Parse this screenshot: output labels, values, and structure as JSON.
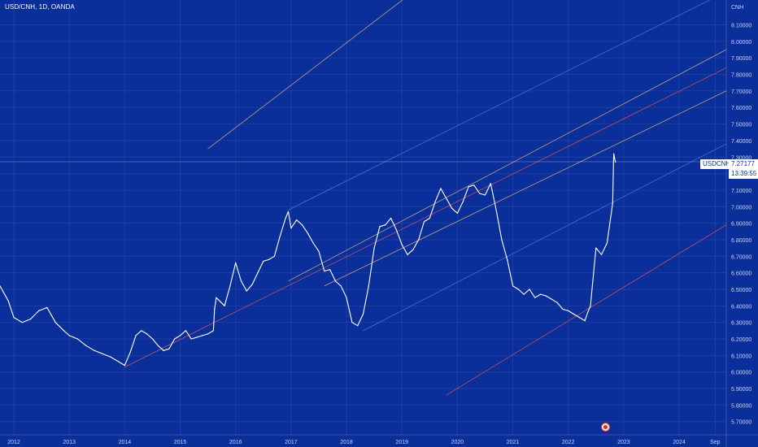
{
  "header": {
    "title": "USD/CNH, 1D, OANDA"
  },
  "price_scale": {
    "currency": "CNH",
    "ticks": [
      "8.10000",
      "8.00000",
      "7.90000",
      "7.80000",
      "7.70000",
      "7.60000",
      "7.50000",
      "7.40000",
      "7.30000",
      "7.20000",
      "7.10000",
      "7.00000",
      "6.90000",
      "6.80000",
      "6.70000",
      "6.60000",
      "6.50000",
      "6.40000",
      "6.30000",
      "6.20000",
      "6.10000",
      "6.00000",
      "5.90000",
      "5.80000",
      "5.70000"
    ]
  },
  "current_price": {
    "symbol": "USDCNH",
    "value": "7.27177",
    "countdown": "13:39:55"
  },
  "time_axis": {
    "labels": [
      "2012",
      "2013",
      "2014",
      "2015",
      "2016",
      "2017",
      "2018",
      "2019",
      "2020",
      "2021",
      "2022",
      "2023",
      "2024",
      "Sep"
    ]
  },
  "colors": {
    "background": "#0b2f9a",
    "price_line": "#ffffff",
    "channel_orange": "#e0b27a",
    "channel_red": "#e0525a",
    "channel_blue": "#4a7ce0",
    "axis_text": "#c8d3f0"
  },
  "chart_data": {
    "type": "line",
    "title": "USD/CNH, 1D, OANDA",
    "xlabel": "",
    "ylabel": "CNH",
    "ylim": [
      5.62,
      8.25
    ],
    "xlim": [
      2011.75,
      2024.85
    ],
    "grid": true,
    "series": [
      {
        "name": "USDCNH",
        "x": [
          2011.75,
          2011.9,
          2012.0,
          2012.15,
          2012.3,
          2012.45,
          2012.6,
          2012.75,
          2012.9,
          2013.0,
          2013.15,
          2013.3,
          2013.45,
          2013.6,
          2013.75,
          2013.9,
          2014.0,
          2014.1,
          2014.2,
          2014.3,
          2014.4,
          2014.5,
          2014.6,
          2014.7,
          2014.8,
          2014.9,
          2015.0,
          2015.1,
          2015.2,
          2015.3,
          2015.4,
          2015.5,
          2015.6,
          2015.62,
          2015.65,
          2015.8,
          2015.9,
          2016.0,
          2016.1,
          2016.2,
          2016.3,
          2016.4,
          2016.5,
          2016.6,
          2016.7,
          2016.8,
          2016.9,
          2016.95,
          2017.0,
          2017.1,
          2017.2,
          2017.3,
          2017.4,
          2017.5,
          2017.6,
          2017.7,
          2017.8,
          2017.9,
          2018.0,
          2018.1,
          2018.2,
          2018.3,
          2018.4,
          2018.5,
          2018.6,
          2018.7,
          2018.8,
          2018.9,
          2019.0,
          2019.1,
          2019.2,
          2019.3,
          2019.4,
          2019.5,
          2019.6,
          2019.7,
          2019.8,
          2019.9,
          2020.0,
          2020.1,
          2020.2,
          2020.3,
          2020.4,
          2020.5,
          2020.6,
          2020.7,
          2020.8,
          2020.9,
          2021.0,
          2021.1,
          2021.2,
          2021.3,
          2021.4,
          2021.5,
          2021.6,
          2021.7,
          2021.8,
          2021.9,
          2022.0,
          2022.1,
          2022.2,
          2022.3,
          2022.35,
          2022.4,
          2022.5,
          2022.6,
          2022.7,
          2022.8,
          2022.82,
          2022.85
        ],
        "values": [
          6.52,
          6.43,
          6.33,
          6.3,
          6.32,
          6.37,
          6.39,
          6.3,
          6.25,
          6.22,
          6.2,
          6.16,
          6.13,
          6.11,
          6.09,
          6.06,
          6.04,
          6.12,
          6.22,
          6.25,
          6.23,
          6.2,
          6.16,
          6.13,
          6.14,
          6.2,
          6.22,
          6.25,
          6.2,
          6.21,
          6.22,
          6.23,
          6.25,
          6.38,
          6.45,
          6.4,
          6.52,
          6.66,
          6.55,
          6.49,
          6.53,
          6.6,
          6.67,
          6.68,
          6.7,
          6.82,
          6.93,
          6.97,
          6.87,
          6.92,
          6.89,
          6.84,
          6.78,
          6.73,
          6.61,
          6.62,
          6.55,
          6.52,
          6.45,
          6.3,
          6.28,
          6.35,
          6.52,
          6.75,
          6.88,
          6.89,
          6.93,
          6.86,
          6.77,
          6.71,
          6.74,
          6.8,
          6.91,
          6.93,
          7.03,
          7.11,
          7.05,
          6.99,
          6.96,
          7.03,
          7.12,
          7.13,
          7.08,
          7.07,
          7.14,
          6.98,
          6.8,
          6.68,
          6.52,
          6.5,
          6.47,
          6.5,
          6.45,
          6.47,
          6.46,
          6.44,
          6.42,
          6.38,
          6.37,
          6.35,
          6.33,
          6.31,
          6.36,
          6.4,
          6.75,
          6.71,
          6.78,
          7.02,
          7.32,
          7.27
        ]
      }
    ],
    "drawings": [
      {
        "color": "orange",
        "from": [
          2015.5,
          7.35
        ],
        "to": [
          2019.4,
          8.35
        ]
      },
      {
        "color": "blue",
        "from": [
          2016.95,
          6.98
        ],
        "to": [
          2024.85,
          8.3
        ]
      },
      {
        "color": "orange",
        "from": [
          2016.95,
          6.55
        ],
        "to": [
          2024.85,
          7.95
        ]
      },
      {
        "color": "red",
        "from": [
          2014.0,
          6.03
        ],
        "to": [
          2024.85,
          7.84
        ]
      },
      {
        "color": "orange",
        "from": [
          2017.6,
          6.52
        ],
        "to": [
          2024.85,
          7.7
        ]
      },
      {
        "color": "blue",
        "from": [
          2018.3,
          6.25
        ],
        "to": [
          2024.85,
          7.38
        ]
      },
      {
        "color": "red",
        "from": [
          2019.8,
          5.86
        ],
        "to": [
          2024.85,
          6.89
        ]
      }
    ]
  }
}
